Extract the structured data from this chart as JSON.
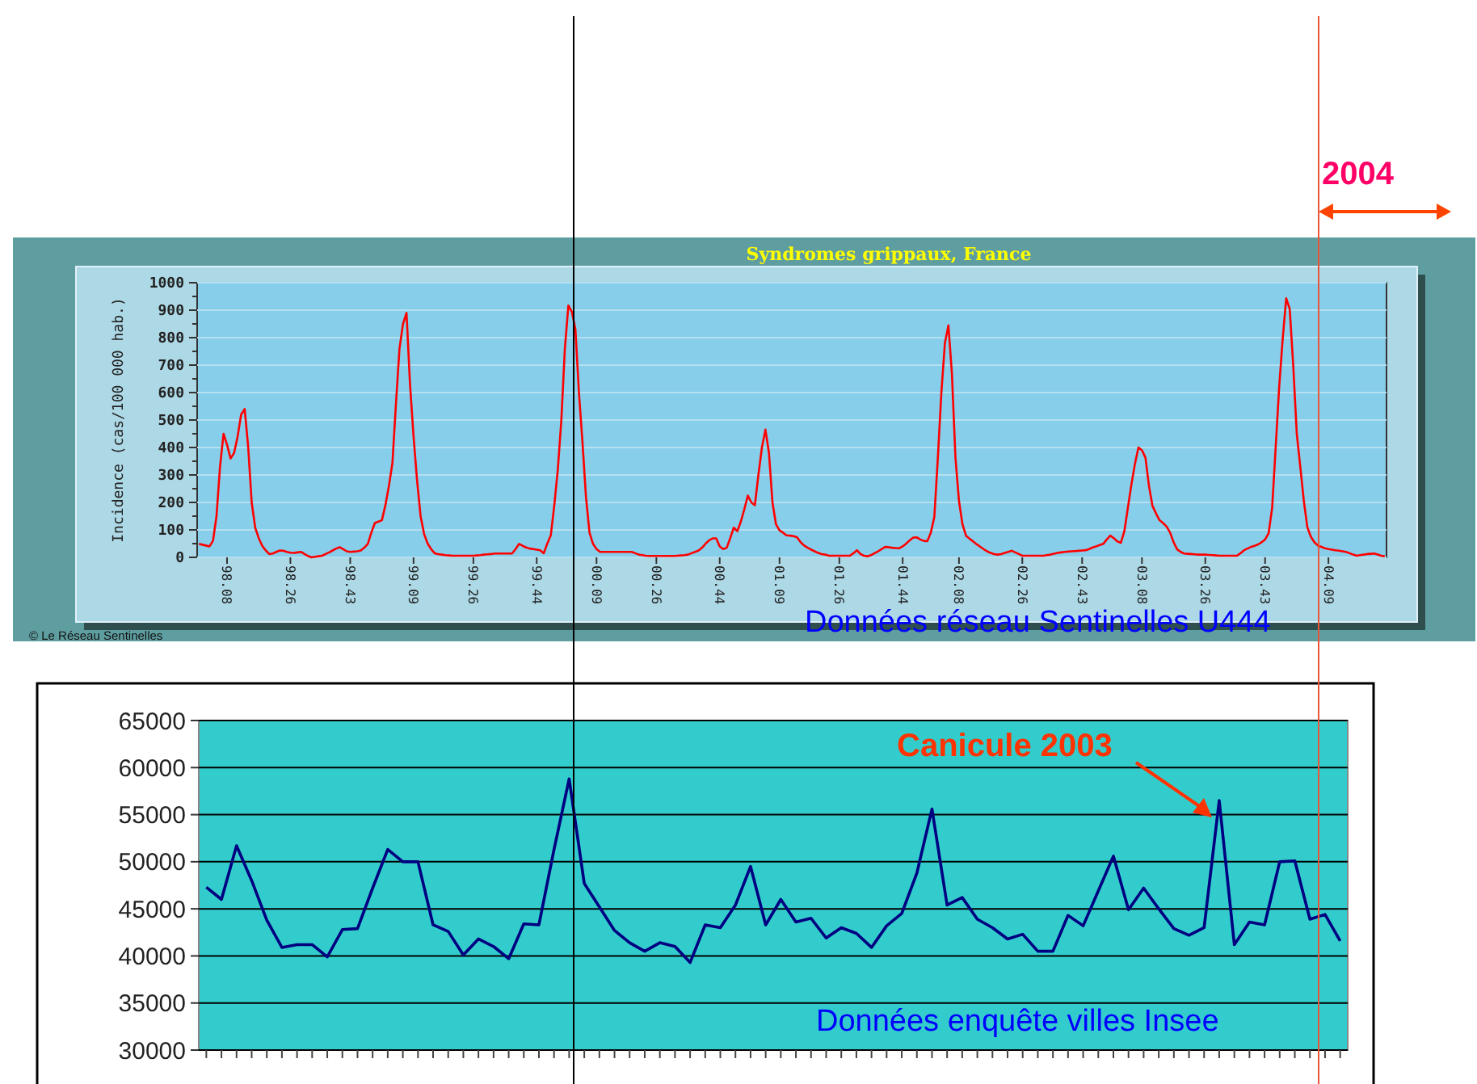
{
  "chart_data": [
    {
      "type": "line",
      "title": "Syndromes grippaux, France",
      "ylabel": "Incidence (cas/100 000 hab.)",
      "annotations": [
        "2004",
        "© Le Réseau Sentinelles",
        "Données réseau Sentinelles U444"
      ],
      "categories": [
        null,
        null,
        null,
        null,
        null,
        null,
        null,
        null,
        "98.08",
        null,
        null,
        null,
        null,
        null,
        null,
        null,
        null,
        null,
        null,
        null,
        null,
        null,
        null,
        null,
        null,
        null,
        "98.26",
        null,
        null,
        null,
        null,
        null,
        null,
        null,
        null,
        null,
        null,
        null,
        null,
        null,
        null,
        null,
        null,
        "98.43",
        null,
        null,
        null,
        null,
        null,
        null,
        null,
        null,
        null,
        null,
        null,
        null,
        null,
        null,
        null,
        null,
        null,
        "99.09",
        null,
        null,
        null,
        null,
        null,
        null,
        null,
        null,
        null,
        null,
        null,
        null,
        null,
        null,
        null,
        null,
        "99.26",
        null,
        null,
        null,
        null,
        null,
        null,
        null,
        null,
        null,
        null,
        null,
        null,
        null,
        null,
        null,
        null,
        null,
        "99.44",
        null,
        null,
        null,
        null,
        null,
        null,
        null,
        null,
        null,
        null,
        null,
        null,
        null,
        null,
        null,
        null,
        "00.09",
        null,
        null,
        null,
        null,
        null,
        null,
        null,
        null,
        null,
        null,
        null,
        null,
        null,
        null,
        null,
        null,
        "00.26",
        null,
        null,
        null,
        null,
        null,
        null,
        null,
        null,
        null,
        null,
        null,
        null,
        null,
        null,
        null,
        null,
        null,
        "00.44",
        null,
        null,
        null,
        null,
        null,
        null,
        null,
        null,
        null,
        null,
        null,
        null,
        null,
        null,
        null,
        null,
        "01.09",
        null,
        null,
        null,
        null,
        null,
        null,
        null,
        null,
        null,
        null,
        null,
        null,
        null,
        null,
        null,
        null,
        "01.26",
        null,
        null,
        null,
        null,
        null,
        null,
        null,
        null,
        null,
        null,
        null,
        null,
        null,
        null,
        null,
        null,
        null,
        "01.44",
        null,
        null,
        null,
        null,
        null,
        null,
        null,
        null,
        null,
        null,
        null,
        null,
        null,
        null,
        null,
        "02.08",
        null,
        null,
        null,
        null,
        null,
        null,
        null,
        null,
        null,
        null,
        null,
        null,
        null,
        null,
        null,
        null,
        null,
        "02.26",
        null,
        null,
        null,
        null,
        null,
        null,
        null,
        null,
        null,
        null,
        null,
        null,
        null,
        null,
        null,
        null,
        "02.43",
        null,
        null,
        null,
        null,
        null,
        null,
        null,
        null,
        null,
        null,
        null,
        null,
        null,
        null,
        null,
        null,
        "03.08",
        null,
        null,
        null,
        null,
        null,
        null,
        null,
        null,
        null,
        null,
        null,
        null,
        null,
        null,
        null,
        null,
        null,
        "03.26",
        null,
        null,
        null,
        null,
        null,
        null,
        null,
        null,
        null,
        null,
        null,
        null,
        null,
        null,
        null,
        null,
        "03.43",
        null,
        null,
        null,
        null,
        null,
        null,
        null,
        null,
        null,
        null,
        null,
        null,
        null,
        null,
        null,
        null,
        null,
        "04.09",
        null,
        null,
        null,
        null,
        null,
        null,
        null,
        null,
        null,
        null,
        null,
        null,
        null,
        null,
        null,
        null
      ],
      "series": [
        {
          "color": "#ff0000",
          "values": [
            49,
            46,
            43,
            40,
            60,
            150,
            330,
            450,
            410,
            360,
            380,
            440,
            520,
            540,
            403,
            200,
            108,
            70,
            42,
            25,
            12,
            14,
            20,
            25,
            24,
            20,
            17,
            16,
            18,
            20,
            12,
            5,
            0,
            2,
            4,
            6,
            12,
            18,
            25,
            32,
            37,
            30,
            22,
            20,
            21,
            22,
            25,
            35,
            49,
            90,
            125,
            130,
            135,
            190,
            260,
            344,
            560,
            760,
            850,
            890,
            629,
            440,
            280,
            150,
            85,
            50,
            30,
            15,
            12,
            10,
            8,
            7,
            6,
            6,
            6,
            6,
            6,
            6,
            6,
            7,
            8,
            10,
            11,
            12,
            14,
            14,
            14,
            14,
            14,
            14,
            30,
            49,
            42,
            36,
            32,
            30,
            28,
            26,
            15,
            50,
            80,
            190,
            320,
            500,
            760,
            917,
            894,
            830,
            600,
            420,
            220,
            90,
            49,
            30,
            20,
            20,
            20,
            20,
            20,
            20,
            20,
            20,
            20,
            20,
            15,
            10,
            8,
            6,
            5,
            5,
            5,
            5,
            5,
            5,
            5,
            5,
            6,
            7,
            8,
            10,
            15,
            20,
            25,
            35,
            50,
            62,
            69,
            69,
            40,
            30,
            35,
            70,
            108,
            95,
            130,
            175,
            225,
            200,
            190,
            300,
            400,
            465,
            380,
            200,
            120,
            98,
            90,
            80,
            79,
            77,
            73,
            55,
            43,
            35,
            28,
            22,
            16,
            12,
            10,
            6,
            6,
            6,
            6,
            6,
            6,
            6,
            15,
            26,
            12,
            6,
            4,
            8,
            15,
            22,
            30,
            38,
            37,
            35,
            34,
            33,
            40,
            50,
            62,
            72,
            73,
            65,
            60,
            59,
            90,
            147,
            363,
            600,
            780,
            845,
            668,
            363,
            206,
            120,
            79,
            68,
            58,
            48,
            39,
            30,
            22,
            16,
            12,
            10,
            12,
            16,
            20,
            24,
            18,
            12,
            6,
            6,
            6,
            6,
            6,
            6,
            6,
            8,
            10,
            13,
            16,
            18,
            20,
            21,
            22,
            23,
            24,
            25,
            26,
            30,
            36,
            40,
            45,
            49,
            65,
            79,
            70,
            58,
            53,
            95,
            180,
            265,
            340,
            400,
            390,
            363,
            260,
            187,
            160,
            135,
            125,
            112,
            90,
            55,
            29,
            20,
            14,
            13,
            12,
            11,
            10,
            10,
            10,
            9,
            8,
            7,
            6,
            6,
            6,
            6,
            6,
            6,
            15,
            26,
            32,
            38,
            42,
            47,
            55,
            65,
            88,
            180,
            400,
            620,
            796,
            943,
            904,
            697,
            450,
            330,
            206,
            110,
            75,
            55,
            43,
            38,
            33,
            30,
            28,
            26,
            24,
            22,
            20,
            15,
            10,
            6,
            8,
            10,
            12,
            13,
            14,
            10,
            6,
            4
          ]
        }
      ],
      "ylim": [
        0,
        1000
      ],
      "yticks": [
        0,
        100,
        200,
        300,
        400,
        500,
        600,
        700,
        800,
        900,
        1000
      ],
      "grid": "y"
    },
    {
      "type": "line",
      "annotations": [
        "Canicule 2003",
        "Données enquête villes Insee"
      ],
      "categories": [
        null,
        null,
        null,
        null,
        null,
        null,
        null,
        null,
        null,
        null,
        null,
        null,
        null,
        null,
        null,
        null,
        null,
        null,
        null,
        null,
        null,
        null,
        null,
        null,
        null,
        null,
        null,
        null,
        null,
        null,
        null,
        null,
        null,
        null,
        null,
        null,
        null,
        null,
        null,
        null,
        null,
        null,
        null,
        null,
        null,
        null,
        null,
        null,
        null,
        null,
        null,
        null,
        null,
        null,
        null,
        null,
        null,
        null,
        null,
        null,
        null,
        null,
        null,
        null,
        null,
        null,
        null,
        null,
        null,
        null,
        null,
        null,
        null,
        null,
        null,
        null
      ],
      "series": [
        {
          "color": "#000080",
          "values": [
            47300,
            46000,
            51700,
            48000,
            43800,
            40900,
            41200,
            41200,
            39900,
            42800,
            42900,
            47200,
            51300,
            50000,
            50000,
            43300,
            42600,
            40100,
            41800,
            41000,
            39700,
            43400,
            43300,
            51300,
            58800,
            47700,
            45200,
            42700,
            41400,
            40500,
            41400,
            41000,
            39300,
            43300,
            43000,
            45400,
            49500,
            43300,
            46000,
            43600,
            44000,
            41900,
            43000,
            42400,
            40900,
            43200,
            44500,
            48800,
            55600,
            45400,
            46200,
            43900,
            43000,
            41800,
            42300,
            40500,
            40500,
            44300,
            43200,
            46900,
            50600,
            44900,
            47200,
            45000,
            42900,
            42200,
            43000,
            56500,
            41200,
            43600,
            43300,
            50000,
            50100,
            43900,
            44400,
            41600
          ]
        }
      ],
      "ylim": [
        30000,
        65000
      ],
      "yticks": [
        30000,
        35000,
        40000,
        45000,
        50000,
        55000,
        60000,
        65000
      ],
      "grid": "y",
      "tick_labels": "y"
    }
  ]
}
